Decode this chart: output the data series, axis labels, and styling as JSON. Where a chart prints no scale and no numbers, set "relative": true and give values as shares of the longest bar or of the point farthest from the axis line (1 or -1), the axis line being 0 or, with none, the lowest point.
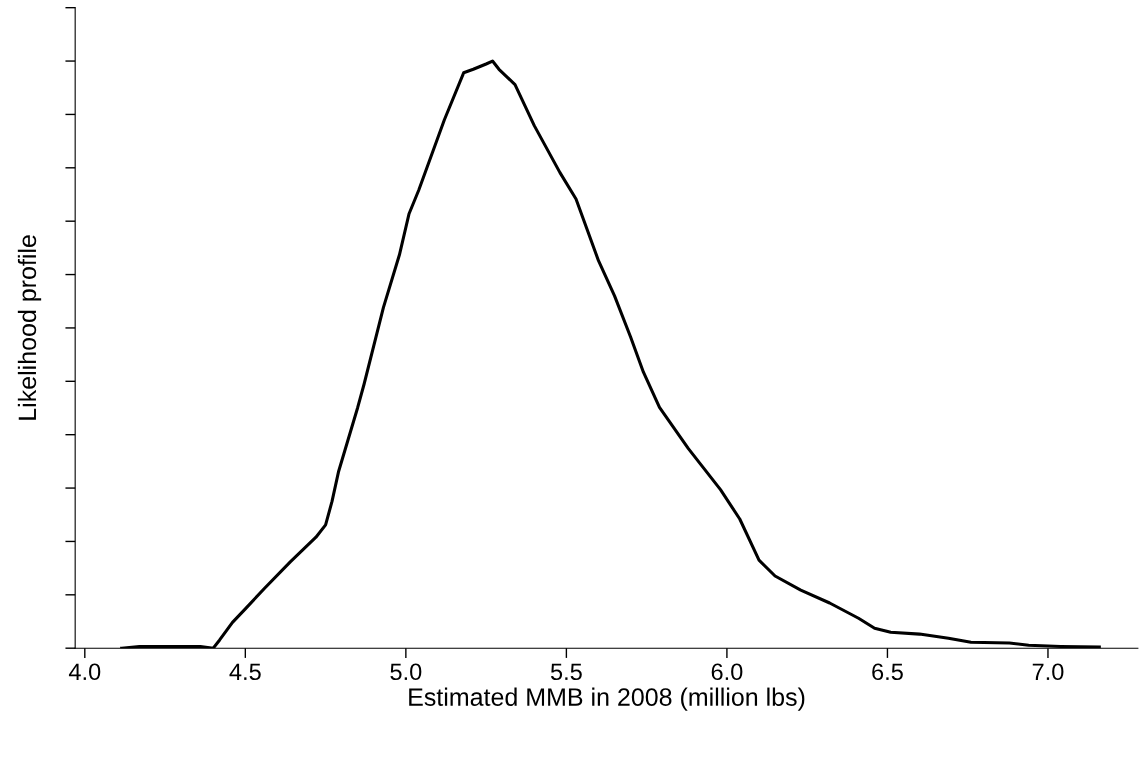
{
  "chart_data": {
    "type": "line",
    "relative": true,
    "xlabel": "Estimated MMB in 2008 (million lbs)",
    "ylabel": "Likelihood profile",
    "xlim": [
      3.97,
      7.28
    ],
    "xticks": [
      {
        "value": 4.0,
        "label": "4.0"
      },
      {
        "value": 4.5,
        "label": "4.5"
      },
      {
        "value": 5.0,
        "label": "5.0"
      },
      {
        "value": 5.5,
        "label": "5.5"
      },
      {
        "value": 6.0,
        "label": "6.0"
      },
      {
        "value": 6.5,
        "label": "6.5"
      },
      {
        "value": 7.0,
        "label": "7.0"
      }
    ],
    "grid": false,
    "legend": false,
    "marker": "none",
    "line_style": "solid",
    "series": [
      {
        "color": "#000000",
        "x": [
          4.115,
          4.17,
          4.36,
          4.4,
          4.42,
          4.46,
          4.5,
          4.56,
          4.64,
          4.72,
          4.75,
          4.77,
          4.79,
          4.85,
          4.87,
          4.93,
          4.98,
          5.01,
          5.04,
          5.12,
          5.18,
          5.21,
          5.25,
          5.27,
          5.29,
          5.34,
          5.4,
          5.48,
          5.53,
          5.6,
          5.65,
          5.7,
          5.74,
          5.79,
          5.88,
          5.98,
          6.04,
          6.1,
          6.15,
          6.23,
          6.32,
          6.41,
          6.46,
          6.51,
          6.6,
          6.69,
          6.76,
          6.88,
          6.94,
          7.04,
          7.16
        ],
        "values": [
          0,
          0.003,
          0.003,
          0,
          0.014,
          0.044,
          0.067,
          0.102,
          0.147,
          0.189,
          0.21,
          0.25,
          0.3,
          0.41,
          0.45,
          0.58,
          0.67,
          0.74,
          0.78,
          0.9,
          0.98,
          0.986,
          0.995,
          1.0,
          0.986,
          0.96,
          0.89,
          0.81,
          0.765,
          0.66,
          0.6,
          0.53,
          0.47,
          0.41,
          0.34,
          0.27,
          0.22,
          0.15,
          0.123,
          0.099,
          0.077,
          0.051,
          0.034,
          0.027,
          0.024,
          0.017,
          0.01,
          0.009,
          0.005,
          0.003,
          0.002
        ]
      }
    ]
  }
}
